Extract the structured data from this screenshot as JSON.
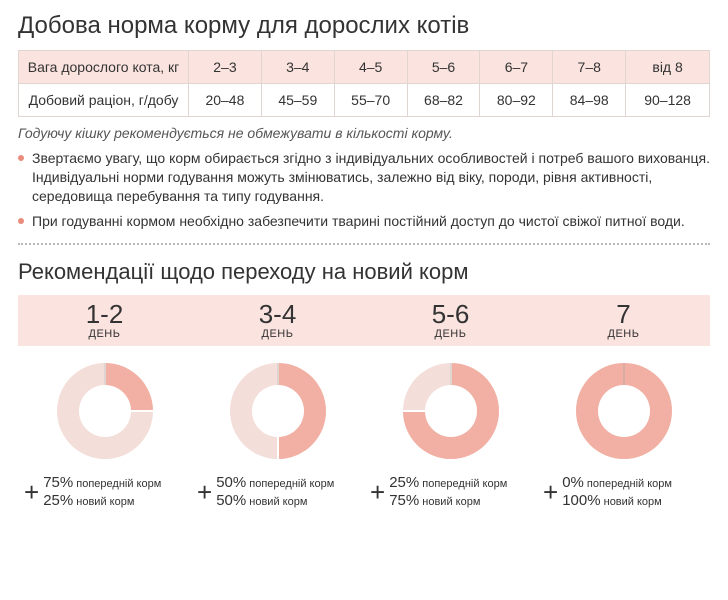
{
  "heading1": "Добова норма корму для дорослих котів",
  "table": {
    "row1_label": "Вага дорослого кота, кг",
    "row1_values": [
      "2–3",
      "3–4",
      "4–5",
      "5–6",
      "6–7",
      "7–8",
      "від 8"
    ],
    "row2_label": "Добовий раціон, г/добу",
    "row2_values": [
      "20–48",
      "45–59",
      "55–70",
      "68–82",
      "80–92",
      "84–98",
      "90–128"
    ],
    "header_bg": "#fbe3df",
    "border_color": "#e0d5d0"
  },
  "note_italic": "Годуючу кішку рекомендується не обмежувати в кількості корму.",
  "notes": [
    "Звертаємо увагу, що корм обирається згідно з індивідуальних особливостей і потреб вашого вихованця. Індивідуальні норми годування можуть змінюватись, залежно від віку, породи, рівня активності, середовища перебування та типу годування.",
    "При годуванні кормом необхідно забезпечити тварині постійний доступ до чистої свіжої питної води."
  ],
  "heading2": "Рекомендації щодо переходу на новий корм",
  "day_label": "ДЕНЬ",
  "prev_label": "попередній корм",
  "new_label": "новий корм",
  "plus": "+",
  "pct_symbol": "%",
  "steps": [
    {
      "days": "1-2",
      "prev_pct": 75,
      "new_pct": 25
    },
    {
      "days": "3-4",
      "prev_pct": 50,
      "new_pct": 50
    },
    {
      "days": "5-6",
      "prev_pct": 25,
      "new_pct": 75
    },
    {
      "days": "7",
      "prev_pct": 0,
      "new_pct": 100
    }
  ],
  "donut": {
    "size": 110,
    "outer_radius": 48,
    "inner_radius": 26,
    "prev_color": "#f3ded9",
    "new_color": "#f2b0a4",
    "gap_color": "#ffffff",
    "tick_color": "#bfa89f",
    "start_angle_deg": 0
  },
  "colors": {
    "bullet": "#e98c7b",
    "text": "#333333",
    "divider": "#bbbbbb"
  }
}
